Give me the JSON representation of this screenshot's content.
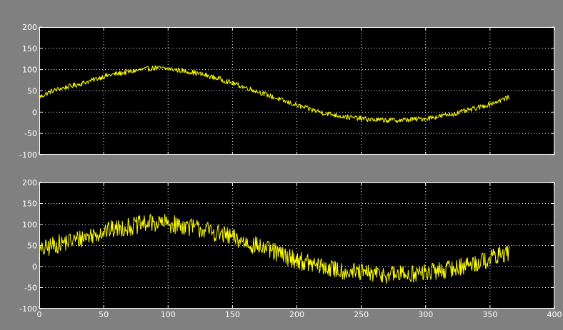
{
  "colors": {
    "window_bg": "#808080",
    "axes_bg": "#000000",
    "axes_border": "#ffffff",
    "grid": "#ffffff",
    "trace": "#ffff00",
    "tick_text": "#ffffff"
  },
  "chart_data": [
    {
      "type": "line",
      "title": "",
      "xlabel": "",
      "ylabel": "",
      "xlim": [
        0,
        400
      ],
      "ylim": [
        -100,
        200
      ],
      "x_ticks": [
        "0",
        "50",
        "100",
        "150",
        "200",
        "250",
        "300",
        "350",
        "400"
      ],
      "y_ticks": [
        "200",
        "150",
        "100",
        "50",
        "0",
        "-50",
        "-100"
      ],
      "show_x_tick_labels": false,
      "grid": true,
      "legend": "none",
      "series": [
        {
          "x": [
            0,
            10,
            20,
            30,
            40,
            50,
            60,
            70,
            80,
            90,
            100,
            110,
            120,
            130,
            140,
            150,
            160,
            170,
            180,
            190,
            200,
            210,
            220,
            230,
            240,
            250,
            260,
            270,
            280,
            290,
            300,
            310,
            320,
            330,
            340,
            350,
            360,
            365
          ],
          "y": [
            35,
            50,
            58,
            65,
            74,
            84,
            90,
            95,
            100,
            104,
            102,
            98,
            93,
            86,
            78,
            68,
            58,
            48,
            37,
            26,
            16,
            7,
            -1,
            -7,
            -12,
            -15,
            -18,
            -19,
            -19,
            -17,
            -15,
            -10,
            -5,
            2,
            10,
            19,
            30,
            35
          ],
          "noise_amplitude": 6
        }
      ]
    },
    {
      "type": "line",
      "title": "",
      "xlabel": "",
      "ylabel": "",
      "xlim": [
        0,
        400
      ],
      "ylim": [
        -100,
        200
      ],
      "x_ticks": [
        "0",
        "50",
        "100",
        "150",
        "200",
        "250",
        "300",
        "350",
        "400"
      ],
      "y_ticks": [
        "200",
        "150",
        "100",
        "50",
        "0",
        "-50",
        "-100"
      ],
      "show_x_tick_labels": true,
      "grid": true,
      "legend": "none",
      "series": [
        {
          "x": [
            0,
            10,
            20,
            30,
            40,
            50,
            60,
            70,
            80,
            90,
            100,
            110,
            120,
            130,
            140,
            150,
            160,
            170,
            180,
            190,
            200,
            210,
            220,
            230,
            240,
            250,
            260,
            270,
            280,
            290,
            300,
            310,
            320,
            330,
            340,
            350,
            360,
            365
          ],
          "y": [
            35,
            50,
            58,
            65,
            74,
            84,
            90,
            95,
            100,
            104,
            102,
            98,
            93,
            86,
            78,
            68,
            58,
            48,
            37,
            26,
            16,
            7,
            -1,
            -7,
            -12,
            -15,
            -18,
            -19,
            -19,
            -17,
            -15,
            -10,
            -5,
            2,
            10,
            19,
            30,
            35
          ],
          "noise_amplitude": 22
        }
      ]
    }
  ]
}
